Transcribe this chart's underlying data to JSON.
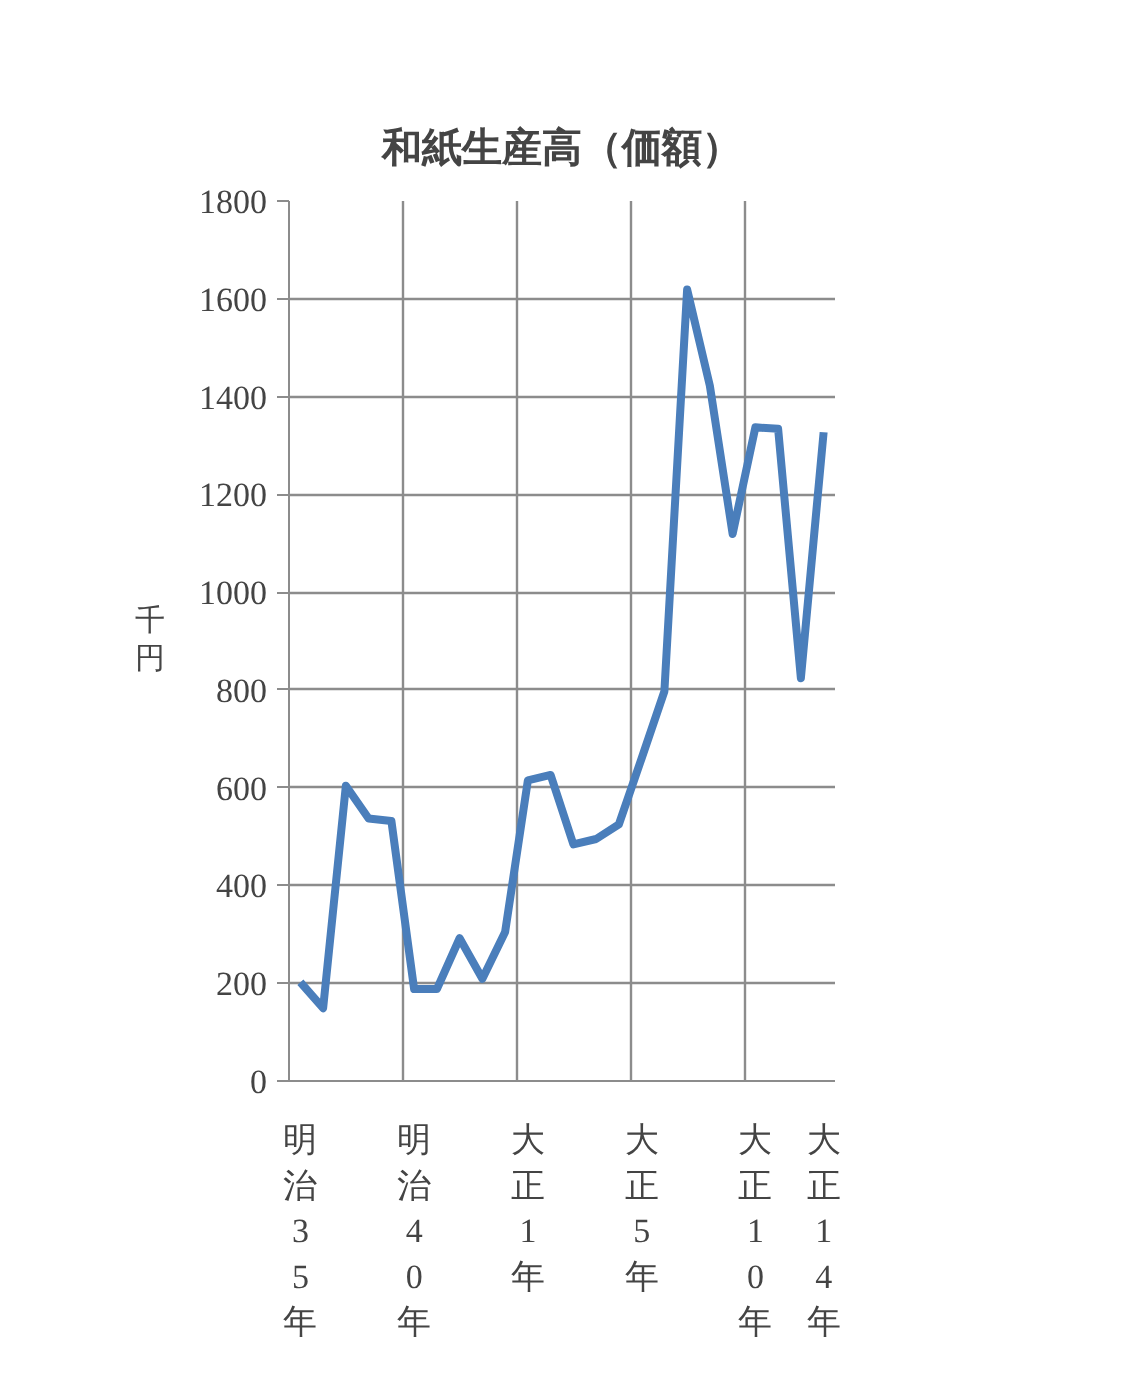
{
  "chart_data": {
    "type": "line",
    "title": "和紙生産高（価額）",
    "ylabel": "千円",
    "categories": [
      "明治35年",
      null,
      null,
      null,
      null,
      "明治40年",
      null,
      null,
      null,
      null,
      "大正1年",
      null,
      null,
      null,
      null,
      "大正5年",
      null,
      null,
      null,
      null,
      "大正10年",
      null,
      null,
      "大正14年"
    ],
    "series": [
      {
        "color": "#4a7ebb",
        "values": [
          202,
          149,
          604,
          537,
          532,
          188,
          188,
          292,
          209,
          305,
          615,
          626,
          484,
          495,
          525,
          660,
          797,
          1619,
          1422,
          1119,
          1337,
          1334,
          824,
          1327
        ]
      }
    ],
    "ylim": [
      0,
      1800
    ],
    "yticks": [
      0,
      200,
      400,
      600,
      800,
      1000,
      1200,
      1400,
      1600,
      1800
    ],
    "grid": true,
    "marker": "none",
    "line_style": "solid"
  }
}
